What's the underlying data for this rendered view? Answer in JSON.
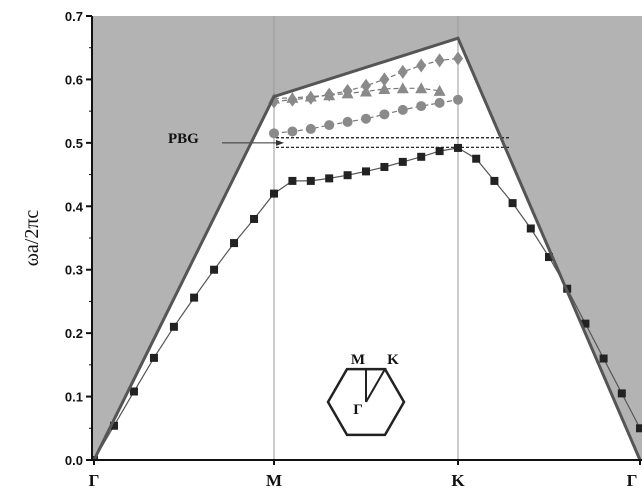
{
  "chart_data": {
    "type": "line",
    "title": "",
    "xlabel": "",
    "ylabel": "ωa/2πc",
    "ylim": [
      0,
      0.7
    ],
    "yticks": [
      "0.0",
      "0.1",
      "0.2",
      "0.3",
      "0.4",
      "0.5",
      "0.6",
      "0.7"
    ],
    "xticks": [
      "Γ",
      "M",
      "K",
      "Γ"
    ],
    "x_positions": [
      0,
      1,
      2,
      3
    ],
    "light_cone": {
      "description": "shaded region above light line",
      "x": [
        0,
        1,
        2,
        3
      ],
      "y": [
        0,
        0.573,
        0.665,
        0
      ],
      "color": "#b3b3b3"
    },
    "series": [
      {
        "marker": "square",
        "line": "solid",
        "points": [
          [
            0,
            0
          ],
          [
            0.111,
            0.054
          ],
          [
            0.222,
            0.108
          ],
          [
            0.333,
            0.161
          ],
          [
            0.444,
            0.21
          ],
          [
            0.556,
            0.256
          ],
          [
            0.667,
            0.3
          ],
          [
            0.778,
            0.342
          ],
          [
            0.889,
            0.38
          ],
          [
            1,
            0.42
          ],
          [
            1.1,
            0.44
          ],
          [
            1.2,
            0.44
          ],
          [
            1.3,
            0.444
          ],
          [
            1.4,
            0.449
          ],
          [
            1.5,
            0.455
          ],
          [
            1.6,
            0.462
          ],
          [
            1.7,
            0.47
          ],
          [
            1.8,
            0.478
          ],
          [
            1.9,
            0.487
          ],
          [
            2,
            0.492
          ],
          [
            2.1,
            0.475
          ],
          [
            2.2,
            0.44
          ],
          [
            2.3,
            0.405
          ],
          [
            2.4,
            0.365
          ],
          [
            2.5,
            0.32
          ],
          [
            2.6,
            0.27
          ],
          [
            2.7,
            0.215
          ],
          [
            2.8,
            0.16
          ],
          [
            2.9,
            0.105
          ],
          [
            3,
            0.05
          ]
        ]
      },
      {
        "marker": "circle",
        "line": "dashed",
        "points": [
          [
            1,
            0.515
          ],
          [
            1.1,
            0.518
          ],
          [
            1.2,
            0.522
          ],
          [
            1.3,
            0.528
          ],
          [
            1.4,
            0.533
          ],
          [
            1.5,
            0.538
          ],
          [
            1.6,
            0.545
          ],
          [
            1.7,
            0.552
          ],
          [
            1.8,
            0.558
          ],
          [
            1.9,
            0.563
          ],
          [
            2,
            0.568
          ]
        ]
      },
      {
        "marker": "triangle",
        "line": "dashed",
        "points": [
          [
            1,
            0.57
          ],
          [
            1.1,
            0.571
          ],
          [
            1.2,
            0.573
          ],
          [
            1.3,
            0.575
          ],
          [
            1.4,
            0.578
          ],
          [
            1.5,
            0.581
          ],
          [
            1.6,
            0.585
          ],
          [
            1.7,
            0.586
          ],
          [
            1.8,
            0.586
          ],
          [
            1.9,
            0.582
          ]
        ]
      },
      {
        "marker": "diamond",
        "line": "dashed",
        "points": [
          [
            1,
            0.565
          ],
          [
            1.1,
            0.568
          ],
          [
            1.2,
            0.571
          ],
          [
            1.3,
            0.576
          ],
          [
            1.4,
            0.582
          ],
          [
            1.5,
            0.59
          ],
          [
            1.6,
            0.6
          ],
          [
            1.7,
            0.612
          ],
          [
            1.8,
            0.622
          ],
          [
            1.9,
            0.63
          ],
          [
            2,
            0.633
          ]
        ]
      }
    ],
    "pbg": {
      "label": "PBG",
      "y_lower": 0.493,
      "y_upper": 0.508
    },
    "inset": {
      "labels": [
        "M",
        "K",
        "Γ"
      ]
    }
  }
}
